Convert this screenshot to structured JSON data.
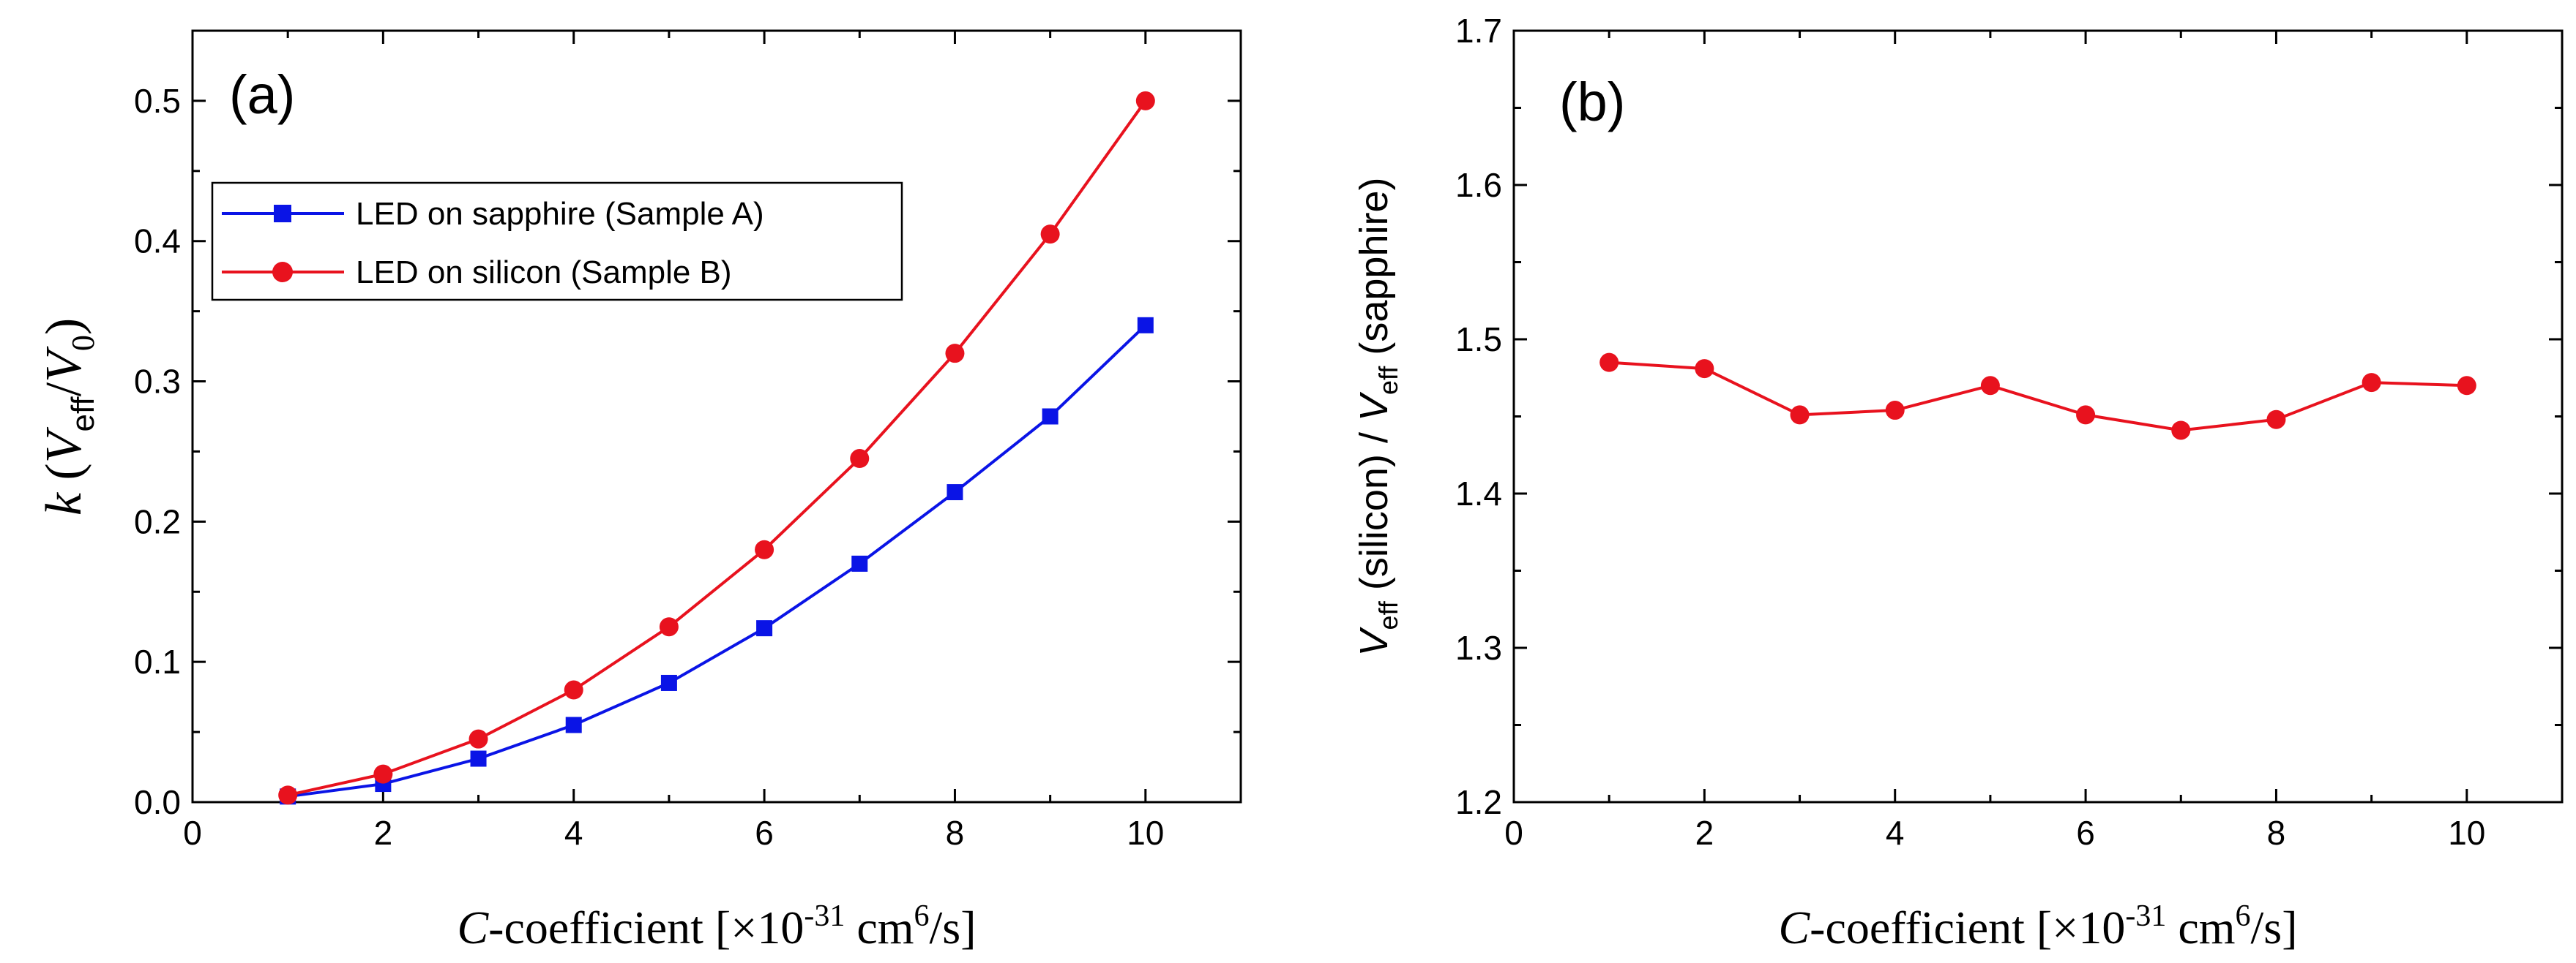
{
  "chart_data": [
    {
      "type": "line",
      "panel_label": "(a)",
      "xlim": [
        0,
        11
      ],
      "ylim": [
        0,
        0.55
      ],
      "x_ticks": [
        "0",
        "2",
        "4",
        "6",
        "8",
        "10"
      ],
      "y_ticks": [
        "0.0",
        "0.1",
        "0.2",
        "0.3",
        "0.4",
        "0.5"
      ],
      "xlabel": {
        "italic": "C",
        "pre": "-coefficient [",
        "times": "×",
        "base": "10",
        "exp": "-31",
        "unit": " cm",
        "unit_exp": "6",
        "post": "/s]"
      },
      "ylabel": {
        "k": "k",
        "open": " (",
        "v": "V",
        "eff": "eff",
        "slash": "/",
        "v0": "V",
        "zero": "0",
        "close": ")"
      },
      "legend_position": "upper-left",
      "x": [
        1,
        2,
        3,
        4,
        5,
        6,
        7,
        8,
        9,
        10
      ],
      "series": [
        {
          "name": "LED on sapphire (Sample A)",
          "color": "#0a14e6",
          "marker": "square",
          "values": [
            0.004,
            0.013,
            0.031,
            0.055,
            0.085,
            0.124,
            0.17,
            0.221,
            0.275,
            0.34
          ]
        },
        {
          "name": "LED on silicon (Sample B)",
          "color": "#e8121e",
          "marker": "circle",
          "values": [
            0.005,
            0.02,
            0.045,
            0.08,
            0.125,
            0.18,
            0.245,
            0.32,
            0.405,
            0.5
          ]
        }
      ]
    },
    {
      "type": "line",
      "panel_label": "(b)",
      "xlim": [
        0,
        11
      ],
      "ylim": [
        1.2,
        1.7
      ],
      "x_ticks": [
        "0",
        "2",
        "4",
        "6",
        "8",
        "10"
      ],
      "y_ticks": [
        "1.2",
        "1.3",
        "1.4",
        "1.5",
        "1.6",
        "1.7"
      ],
      "xlabel": {
        "italic": "C",
        "pre": "-coefficient [",
        "times": "×",
        "base": "10",
        "exp": "-31",
        "unit": " cm",
        "unit_exp": "6",
        "post": "/s]"
      },
      "ylabel": {
        "v1": "V",
        "eff1": "eff",
        "mid": " (silicon) / ",
        "v2": "V",
        "eff2": "eff",
        "end": " (sapphire)"
      },
      "x": [
        1,
        2,
        3,
        4,
        5,
        6,
        7,
        8,
        9,
        10
      ],
      "series": [
        {
          "name": "V_eff(silicon)/V_eff(sapphire)",
          "color": "#e8121e",
          "marker": "circle",
          "values": [
            1.485,
            1.481,
            1.451,
            1.454,
            1.47,
            1.451,
            1.441,
            1.448,
            1.472,
            1.47
          ]
        }
      ]
    }
  ]
}
